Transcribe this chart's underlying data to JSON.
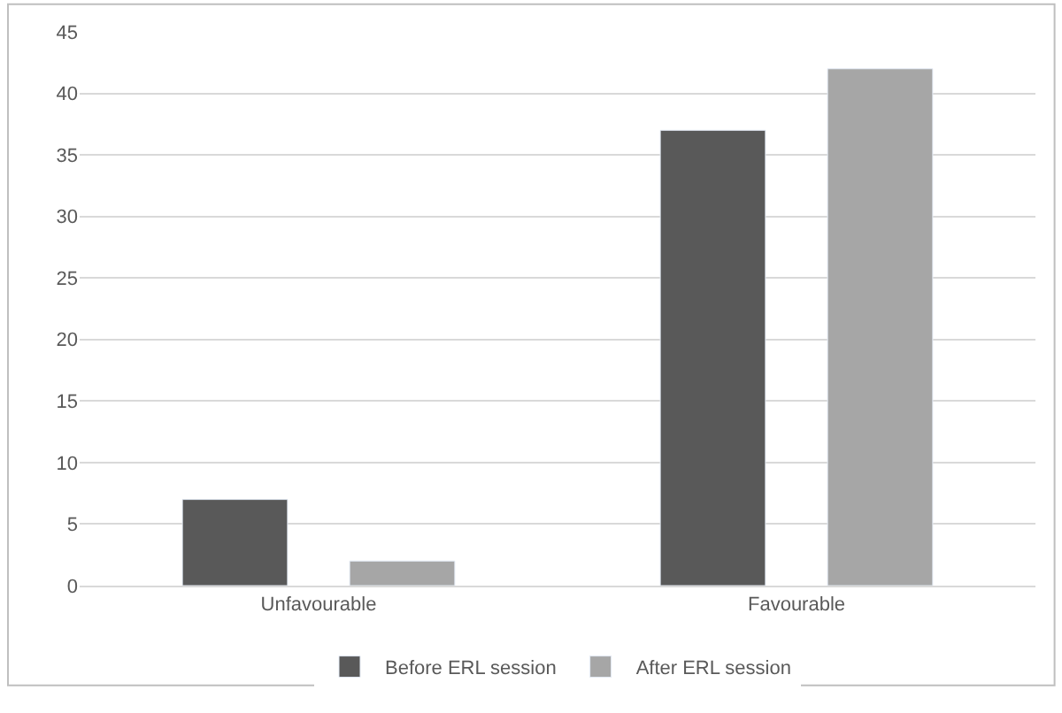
{
  "chart_data": {
    "type": "bar",
    "categories": [
      "Unfavourable",
      "Favourable"
    ],
    "series": [
      {
        "name": "Before ERL session",
        "color": "#595959",
        "values": [
          7,
          37
        ]
      },
      {
        "name": "After ERL session",
        "color": "#a6a6a6",
        "values": [
          2,
          42
        ]
      }
    ],
    "ylim": [
      0,
      45
    ],
    "yticks": [
      0,
      5,
      10,
      15,
      20,
      25,
      30,
      35,
      40,
      45
    ],
    "grid": "y",
    "legend": "bottom"
  }
}
